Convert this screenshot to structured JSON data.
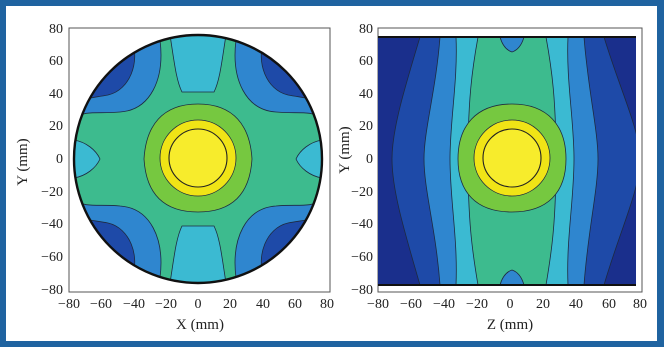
{
  "colors": {
    "frame": "#1f63a0",
    "contour_levels": [
      "#1a2f8c",
      "#1e4aa8",
      "#2f86cf",
      "#3bbad2",
      "#3dbb8e",
      "#76c840",
      "#f0e416"
    ]
  },
  "chart_data": [
    {
      "type": "contour",
      "shape": "circle",
      "x_label": "X (mm)",
      "y_label": "Y (mm)",
      "xlim": [
        -80,
        80
      ],
      "ylim": [
        -80,
        80
      ],
      "x_ticks": [
        "−80",
        "−60",
        "−40",
        "−20",
        "0",
        "20",
        "40",
        "60",
        "80"
      ],
      "y_ticks": [
        "80",
        "60",
        "40",
        "20",
        "0",
        "−20",
        "−40",
        "−60",
        "−80"
      ],
      "domain_radius": 76,
      "center": [
        0,
        0
      ],
      "center_core_radius": 18,
      "center_ring_radius": 14
    },
    {
      "type": "contour",
      "shape": "rectangle",
      "x_label": "Z (mm)",
      "y_label": "Y (mm)",
      "xlim": [
        -80,
        80
      ],
      "ylim": [
        -80,
        80
      ],
      "x_ticks": [
        "−80",
        "−60",
        "−40",
        "−20",
        "0",
        "20",
        "40",
        "60",
        "80"
      ],
      "y_ticks": [
        "80",
        "60",
        "40",
        "20",
        "0",
        "−20",
        "−40",
        "−60",
        "−80"
      ],
      "domain_y_range": [
        -76,
        76
      ],
      "center": [
        0,
        0
      ],
      "center_core_radius": 18,
      "center_ring_radius": 14
    }
  ]
}
